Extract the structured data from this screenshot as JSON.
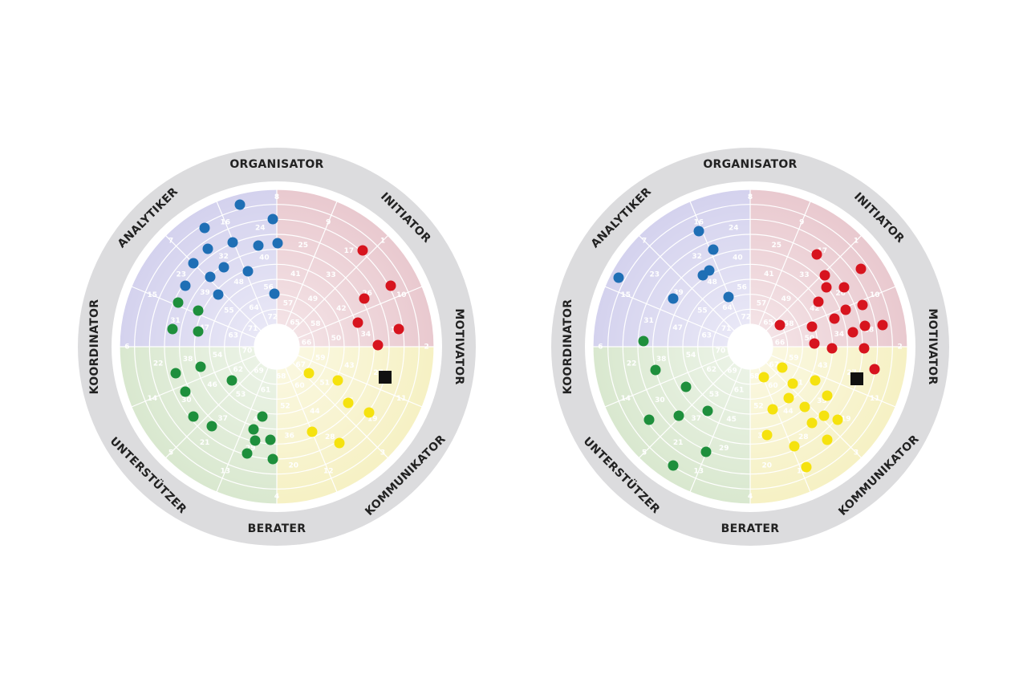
{
  "wheels": [
    {
      "roles": [
        "ORGANISATOR",
        "INITIATOR",
        "MOTIVATOR",
        "KOMMUNIKATOR",
        "BERATER",
        "UNTERSTÜTZER",
        "KOORDINATOR",
        "ANALYTIKER"
      ],
      "positions": [
        [
          1,
          2,
          3,
          4,
          5,
          6,
          7,
          8
        ],
        [
          9,
          10,
          11,
          12,
          13,
          14,
          15,
          16
        ],
        [
          17,
          18,
          19,
          20,
          21,
          22,
          23,
          24
        ],
        [
          25,
          26,
          27,
          28,
          29,
          30,
          31,
          32
        ],
        [
          33,
          34,
          35,
          36,
          37,
          38,
          39,
          40
        ],
        [
          41,
          42,
          43,
          44,
          45,
          46,
          47,
          48
        ],
        [
          49,
          50,
          51,
          52,
          53,
          54,
          55,
          56
        ],
        [
          57,
          58,
          59,
          60,
          61,
          62,
          63,
          64
        ],
        [
          65,
          66,
          67,
          68,
          69,
          70,
          71,
          72
        ]
      ]
    },
    {
      "roles": [
        "ORGANISATOR",
        "INITIATOR",
        "MOTIVATOR",
        "KOMMUNIKATOR",
        "BERATER",
        "UNTERSTÜTZER",
        "KOORDINATOR",
        "ANALYTIKER"
      ],
      "positions": [
        [
          1,
          2,
          3,
          4,
          5,
          6,
          7,
          8
        ],
        [
          9,
          10,
          11,
          12,
          13,
          14,
          15,
          16
        ],
        [
          17,
          18,
          19,
          20,
          21,
          22,
          23,
          24
        ],
        [
          25,
          26,
          27,
          28,
          29,
          30,
          31,
          32
        ],
        [
          33,
          34,
          35,
          36,
          37,
          38,
          39,
          40
        ],
        [
          41,
          42,
          43,
          44,
          45,
          46,
          47,
          48
        ],
        [
          49,
          50,
          51,
          52,
          53,
          54,
          55,
          56
        ],
        [
          57,
          58,
          59,
          60,
          61,
          62,
          63,
          64
        ],
        [
          65,
          66,
          67,
          68,
          69,
          70,
          71,
          72
        ]
      ]
    }
  ]
}
